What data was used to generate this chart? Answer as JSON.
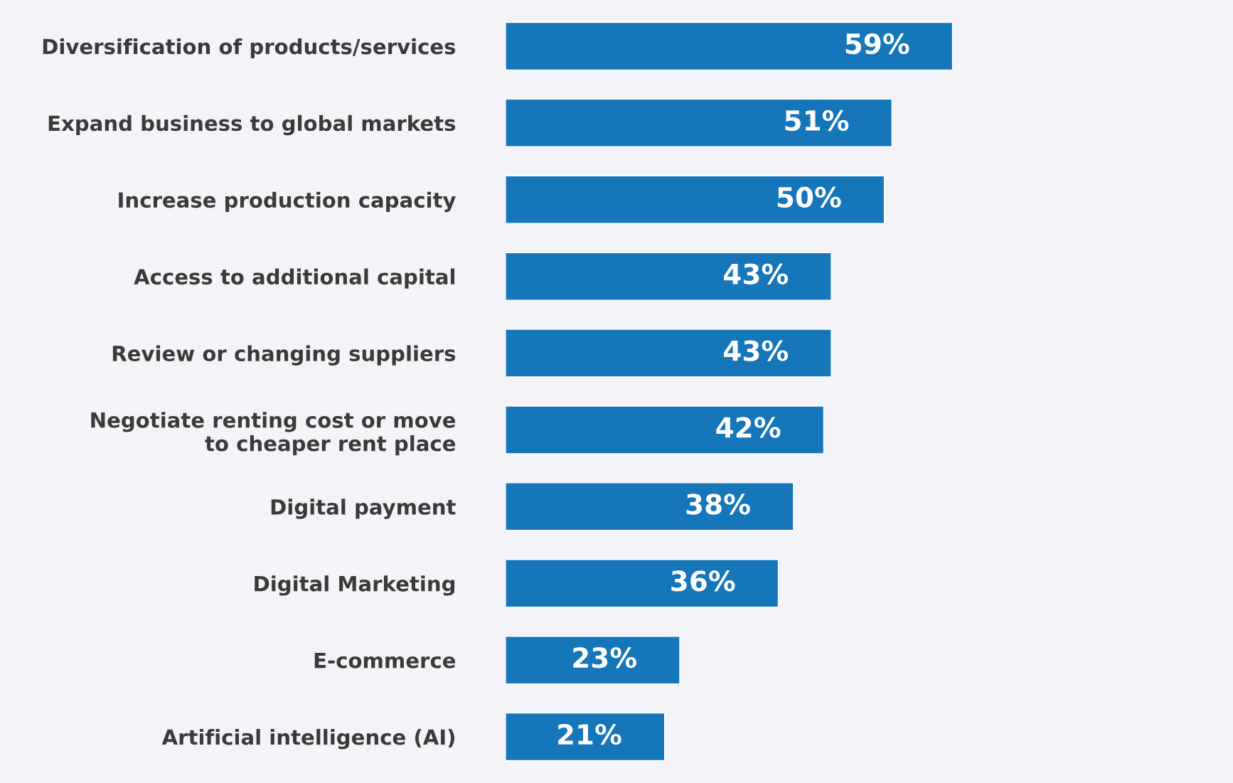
{
  "chart_data": {
    "type": "bar",
    "orientation": "horizontal",
    "categories": [
      "Diversification of products/services",
      "Expand business to global markets",
      "Increase production capacity",
      "Access to additional capital",
      "Review or changing suppliers",
      "Negotiate renting cost or move\nto cheaper rent place",
      "Digital payment",
      "Digital Marketing",
      "E-commerce",
      "Artificial intelligence (AI)"
    ],
    "values": [
      59,
      51,
      50,
      43,
      43,
      42,
      38,
      36,
      23,
      21
    ],
    "value_labels": [
      "59%",
      "51%",
      "50%",
      "43%",
      "43%",
      "42%",
      "38%",
      "36%",
      "23%",
      "21%"
    ],
    "color": "#1576b9",
    "tick_labels": "y",
    "grid": false,
    "legend": false
  }
}
